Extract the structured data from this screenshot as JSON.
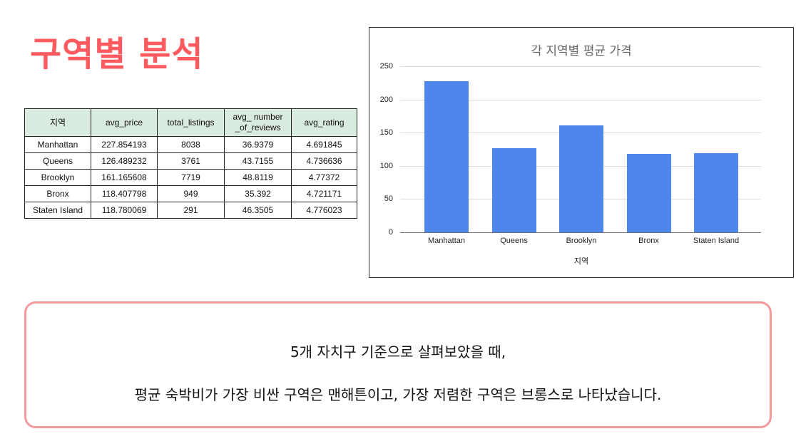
{
  "page": {
    "title": "구역별 분석"
  },
  "table": {
    "headers": [
      "지역",
      "avg_price",
      "total_listings",
      "avg_ number\n_of_reviews",
      "avg_rating"
    ],
    "header_lines": {
      "h3a": "avg_ number",
      "h3b": "_of_reviews"
    },
    "rows": [
      [
        "Manhattan",
        "227.854193",
        "8038",
        "36.9379",
        "4.691845"
      ],
      [
        "Queens",
        "126.489232",
        "3761",
        "43.7155",
        "4.736636"
      ],
      [
        "Brooklyn",
        "161.165608",
        "7719",
        "48.8119",
        "4.77372"
      ],
      [
        "Bronx",
        "118.407798",
        "949",
        "35.392",
        "4.721171"
      ],
      [
        "Staten Island",
        "118.780069",
        "291",
        "46.3505",
        "4.776023"
      ]
    ],
    "header_bg": "#d9eadf"
  },
  "chart_data": {
    "type": "bar",
    "title": "각 지역별 평균 가격",
    "xlabel": "지역",
    "ylabel": "",
    "categories": [
      "Manhattan",
      "Queens",
      "Brooklyn",
      "Bronx",
      "Staten Island"
    ],
    "values": [
      227.854193,
      126.489232,
      161.165608,
      118.407798,
      118.780069
    ],
    "ylim": [
      0,
      250
    ],
    "yticks": [
      "0",
      "50",
      "100",
      "150",
      "200",
      "250"
    ],
    "grid": true,
    "legend": "none",
    "bar_color": "#4f86ec"
  },
  "summary": {
    "line1": "5개 자치구 기준으로 살펴보았을 때,",
    "line2": "평균 숙박비가 가장 비싼 구역은 맨해튼이고, 가장 저렴한 구역은 브롱스로 나타났습니다.",
    "border_color": "#f49a9d"
  },
  "colors": {
    "title": "#ff5a5f"
  }
}
